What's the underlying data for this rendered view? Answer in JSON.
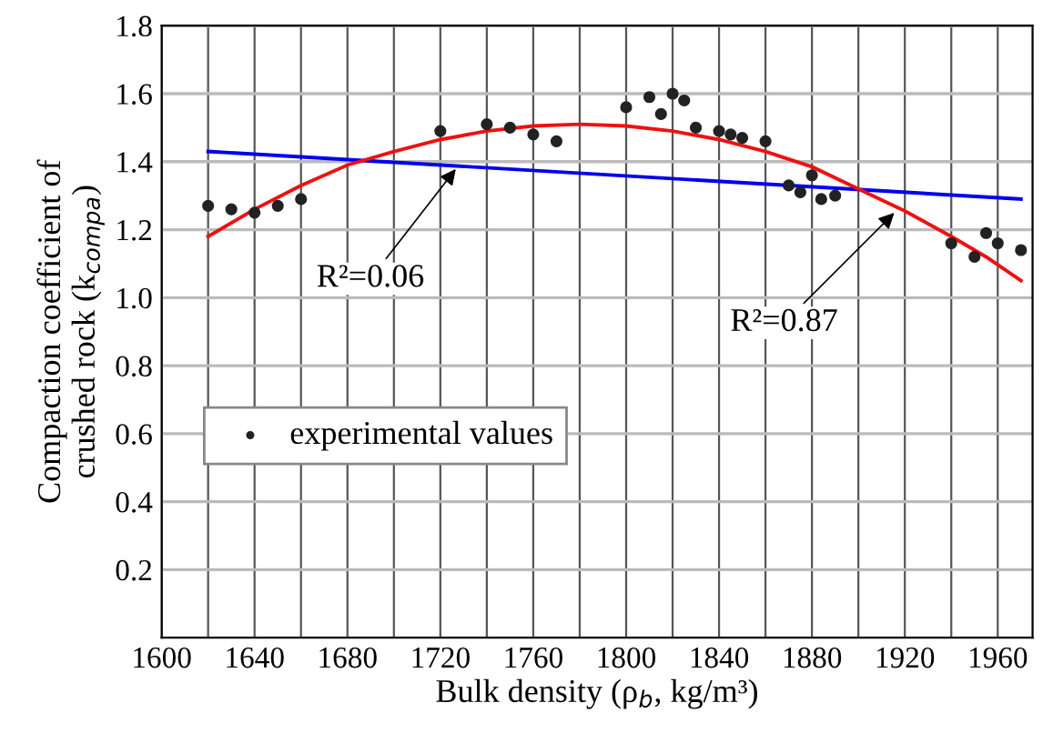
{
  "chart_data": {
    "type": "scatter",
    "xlabel": "Bulk density (ρ$_{b}$, kg/m³)",
    "ylabel": "Compaction coefficient of\ncrushed rock (k$_{compa}$)",
    "xlim": [
      1600,
      1975
    ],
    "ylim": [
      0,
      1.8
    ],
    "xticks": [
      1600,
      {
        "value": 1620,
        "label": null
      },
      1640,
      {
        "value": 1660,
        "label": null
      },
      1680,
      {
        "value": 1700,
        "label": null
      },
      1720,
      {
        "value": 1740,
        "label": null
      },
      1760,
      {
        "value": 1780,
        "label": null
      },
      1800,
      {
        "value": 1820,
        "label": null
      },
      1840,
      {
        "value": 1860,
        "label": null
      },
      1880,
      {
        "value": 1900,
        "label": null
      },
      1920,
      {
        "value": 1940,
        "label": null
      },
      1960
    ],
    "yticks": [
      0.2,
      0.4,
      0.6,
      0.8,
      {
        "value": 1,
        "label": "1.0"
      },
      1.2,
      1.4,
      1.6,
      1.8
    ],
    "grid": true,
    "legend": "left",
    "series": [
      {
        "name": "experimental values",
        "marker": "circle",
        "color": "#222222",
        "x": [
          1620,
          1630,
          1640,
          1650,
          1660,
          1720,
          1740,
          1750,
          1760,
          1770,
          1800,
          1810,
          1815,
          1820,
          1825,
          1830,
          1840,
          1845,
          1850,
          1860,
          1870,
          1875,
          1880,
          1884,
          1890,
          1940,
          1950,
          1955,
          1960,
          1970
        ],
        "values": [
          1.27,
          1.26,
          1.25,
          1.27,
          1.29,
          1.49,
          1.51,
          1.5,
          1.48,
          1.46,
          1.56,
          1.59,
          1.54,
          1.6,
          1.58,
          1.5,
          1.49,
          1.48,
          1.47,
          1.46,
          1.33,
          1.31,
          1.36,
          1.29,
          1.3,
          1.16,
          1.12,
          1.19,
          1.16,
          1.14
        ]
      },
      {
        "type": "line",
        "color": "#0000ee",
        "x": [
          1620,
          1970
        ],
        "values": [
          1.43,
          1.29
        ]
      },
      {
        "type": "line",
        "color": "#ee1111",
        "x": [
          1620,
          1640,
          1660,
          1680,
          1700,
          1720,
          1740,
          1760,
          1780,
          1800,
          1820,
          1840,
          1860,
          1880,
          1900,
          1920,
          1940,
          1955,
          1970
        ],
        "values": [
          1.18,
          1.26,
          1.33,
          1.39,
          1.43,
          1.465,
          1.49,
          1.505,
          1.51,
          1.505,
          1.49,
          1.465,
          1.43,
          1.385,
          1.32,
          1.255,
          1.18,
          1.12,
          1.05
        ]
      }
    ],
    "annotations": [
      {
        "text": "R²=0.06",
        "x": 1728,
        "y": 1.39
      },
      {
        "text": "R²=0.87",
        "x": 1917,
        "y": 1.26
      }
    ]
  }
}
